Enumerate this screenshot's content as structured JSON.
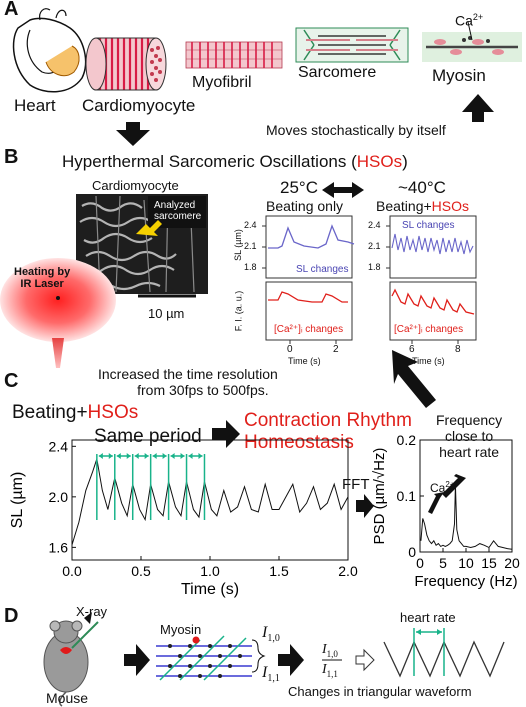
{
  "panels": {
    "a": "A",
    "b": "B",
    "c": "C",
    "d": "D"
  },
  "panel_a": {
    "heart": "Heart",
    "cardiomyocyte": "Cardiomyocyte",
    "myofibril": "Myofibril",
    "sarcomere": "Sarcomere",
    "myosin": "Myosin",
    "ca2": "Ca",
    "ca2_sup": "2+",
    "moves": "Moves stochastically by itself"
  },
  "panel_b": {
    "title_pre": "Hyperthermal Sarcomeric Oscillations (",
    "title_hso": "HSOs",
    "title_post": ")",
    "cell_label": "Cardiomyocyte",
    "analyzed": "Analyzed",
    "analyzed2": "sarcomere",
    "heating1": "Heating by",
    "heating2": "IR Laser",
    "scale": "10 µm",
    "temp_left": "25°C",
    "temp_right": "~40°C",
    "beating_only": "Beating only",
    "beating_plus": "Beating+",
    "hsos": "HSOs",
    "sl_changes": "SL changes",
    "ca_changes": "[Ca²⁺]ᵢ changes",
    "sl_axis": "SL (µm)",
    "fi_axis": "F. I. (a. u.)",
    "time_axis": "Time (s)",
    "sl_ticks": [
      "2.4",
      "2.1",
      "1.8"
    ],
    "left_time_ticks": [
      "0",
      "2"
    ],
    "right_time_ticks": [
      "6",
      "8"
    ]
  },
  "panel_c": {
    "increased1": "Increased the time resolution",
    "increased2": "from 30fps to 500fps.",
    "beating_plus": "Beating+",
    "hsos": "HSOs",
    "same_period": "Same period",
    "rhythm1": "Contraction Rhythm",
    "rhythm2": "Homeostasis",
    "fft": "FFT",
    "freq1": "Frequency",
    "freq2": "close to",
    "freq3": "heart rate",
    "ca2": "Ca",
    "ca2_sup": "2+"
  },
  "panel_d": {
    "xray": "X-ray",
    "mouse": "Mouse",
    "myosin": "Myosin",
    "i10": "I",
    "i10_sub": "1,0",
    "i11": "I",
    "i11_sub": "1,1",
    "heart_rate": "heart rate",
    "changes": "Changes in triangular waveform"
  },
  "chart_data": [
    {
      "type": "line",
      "title": "",
      "xlabel": "Time (s)",
      "ylabel": "SL (µm)",
      "xlim": [
        0,
        2.0
      ],
      "ylim": [
        1.5,
        2.45
      ],
      "xticks": [
        0.0,
        0.5,
        1.0,
        1.5,
        2.0
      ],
      "xtick_labels": [
        "0.0",
        "0.5",
        "1.0",
        "1.5",
        "2.0"
      ],
      "yticks": [
        1.6,
        2.0,
        2.4
      ],
      "ytick_labels": [
        "1.6",
        "2.0",
        "2.4"
      ],
      "period_s": 0.13,
      "peak_times_s": [
        0.18,
        0.31,
        0.44,
        0.57,
        0.7,
        0.83,
        0.96
      ],
      "series": [
        {
          "x": [
            0.0,
            0.05,
            0.1,
            0.15,
            0.18,
            0.22,
            0.26,
            0.31,
            0.36,
            0.4,
            0.44,
            0.49,
            0.53,
            0.57,
            0.62,
            0.66,
            0.7,
            0.75,
            0.79,
            0.83,
            0.88,
            0.92,
            0.96,
            1.01,
            1.05,
            1.1,
            1.15,
            1.2,
            1.25,
            1.3,
            1.35,
            1.4,
            1.45,
            1.5,
            1.55,
            1.6,
            1.65,
            1.7,
            1.75,
            1.8,
            1.85,
            1.9,
            1.95,
            2.0
          ],
          "y": [
            1.62,
            1.8,
            2.05,
            2.2,
            2.3,
            2.05,
            1.9,
            2.15,
            1.95,
            1.85,
            2.1,
            1.9,
            1.82,
            2.1,
            1.9,
            1.85,
            2.12,
            1.92,
            1.85,
            2.12,
            1.9,
            1.84,
            2.12,
            1.9,
            1.85,
            2.05,
            1.88,
            1.92,
            2.08,
            1.9,
            1.88,
            2.1,
            1.9,
            1.9,
            2.0,
            2.1,
            1.88,
            1.95,
            2.08,
            1.9,
            1.95,
            2.1,
            1.9,
            2.0
          ]
        }
      ]
    },
    {
      "type": "line",
      "title": "",
      "xlabel": "Frequency (Hz)",
      "ylabel": "PSD (µm/√Hz)",
      "xlim": [
        0,
        20
      ],
      "ylim": [
        0,
        0.2
      ],
      "xticks": [
        0,
        5,
        10,
        15,
        20
      ],
      "xtick_labels": [
        "0",
        "5",
        "10",
        "15",
        "20"
      ],
      "yticks": [
        0,
        0.1,
        0.2
      ],
      "ytick_labels": [
        "0",
        "0.1",
        "0.2"
      ],
      "series": [
        {
          "x": [
            0.2,
            0.6,
            1.0,
            1.5,
            2.0,
            2.5,
            3.0,
            3.5,
            4.0,
            4.5,
            5.0,
            5.5,
            6.0,
            6.5,
            7.0,
            7.5,
            7.7,
            8.0,
            8.5,
            9.0,
            9.5,
            10,
            11,
            12,
            13,
            14,
            15,
            16,
            17,
            18,
            19,
            20
          ],
          "y": [
            0.02,
            0.06,
            0.05,
            0.03,
            0.02,
            0.015,
            0.02,
            0.012,
            0.015,
            0.01,
            0.012,
            0.01,
            0.012,
            0.015,
            0.02,
            0.05,
            0.12,
            0.04,
            0.02,
            0.015,
            0.01,
            0.01,
            0.008,
            0.01,
            0.015,
            0.012,
            0.008,
            0.02,
            0.01,
            0.008,
            0.006,
            0.005
          ]
        }
      ]
    }
  ]
}
